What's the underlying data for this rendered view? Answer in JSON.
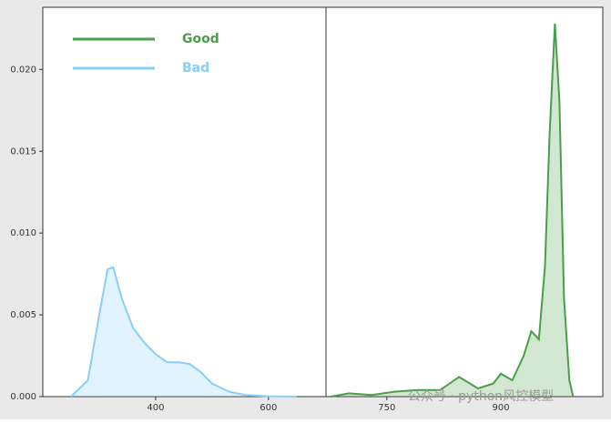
{
  "chart_data": [
    {
      "type": "area",
      "xlim": [
        200,
        702
      ],
      "ylim": [
        0,
        0.0238
      ],
      "xticks": [
        400,
        600
      ],
      "yticks": [
        {
          "value": 0,
          "label": "0.000"
        },
        {
          "value": 0.005,
          "label": "0.005"
        },
        {
          "value": 0.01,
          "label": "0.010"
        },
        {
          "value": 0.015,
          "label": "0.015"
        },
        {
          "value": 0.02,
          "label": "0.020"
        }
      ],
      "legend": "upper left",
      "series": [
        {
          "name": "Bad",
          "color": "#87cefa",
          "x": [
            250,
            280,
            300,
            315,
            325,
            340,
            360,
            380,
            400,
            420,
            440,
            460,
            480,
            500,
            530,
            560,
            600,
            650
          ],
          "values": [
            0,
            0.001,
            0.005,
            0.0078,
            0.0079,
            0.006,
            0.0042,
            0.0033,
            0.0026,
            0.0021,
            0.0021,
            0.002,
            0.0015,
            0.0008,
            0.0003,
            0.0001,
            2e-05,
            0
          ]
        }
      ]
    },
    {
      "type": "area",
      "xlim": [
        670,
        1034
      ],
      "ylim": [
        0,
        0.0238
      ],
      "xticks": [
        750,
        900
      ],
      "series": [
        {
          "name": "Good",
          "color": "#4a9e4a",
          "x": [
            676,
            700,
            730,
            760,
            790,
            820,
            845,
            870,
            890,
            900,
            915,
            930,
            940,
            950,
            958,
            964,
            971,
            977,
            983,
            990,
            995
          ],
          "values": [
            0,
            0.0002,
            0.0001,
            0.0003,
            0.0004,
            0.0004,
            0.0012,
            0.0005,
            0.0008,
            0.0014,
            0.001,
            0.0025,
            0.004,
            0.0035,
            0.008,
            0.016,
            0.0228,
            0.018,
            0.006,
            0.001,
            0
          ]
        }
      ]
    }
  ],
  "watermark": "公众号 · python风控模型"
}
